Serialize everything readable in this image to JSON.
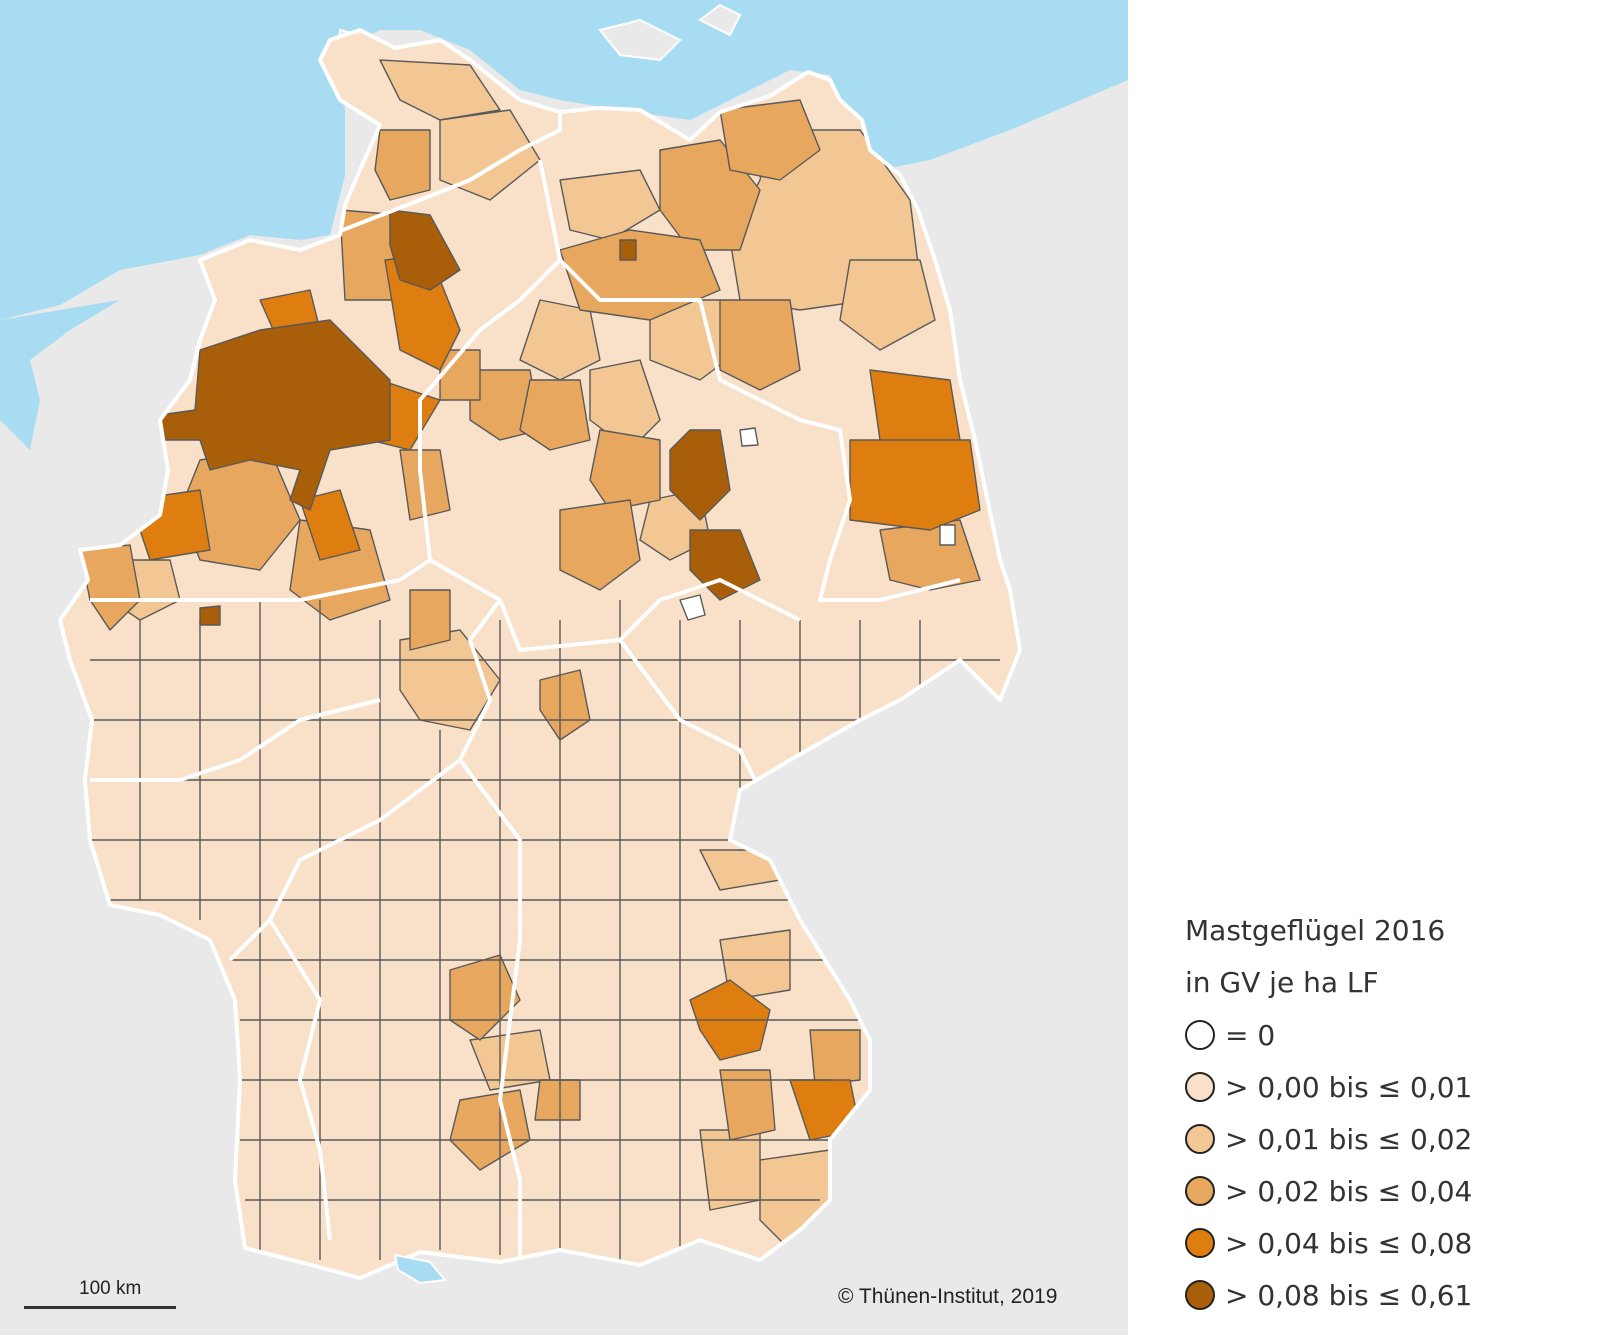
{
  "map": {
    "colors": {
      "sea": "#a7dcf2",
      "land_outside": "#e9e9e9",
      "state_border": "#ffffff",
      "district_border": "#595959"
    },
    "scalebar_label": "100 km",
    "copyright": "© Thünen-Institut, 2019"
  },
  "legend": {
    "title_line1": "Mastgeflügel 2016",
    "title_line2": "in GV je ha LF",
    "classes": [
      {
        "label": "= 0",
        "color": "#ffffff"
      },
      {
        "label": "> 0,00 bis ≤ 0,01",
        "color": "#f8e1c8"
      },
      {
        "label": "> 0,01 bis ≤ 0,02",
        "color": "#f3c794"
      },
      {
        "label": "> 0,02 bis ≤ 0,04",
        "color": "#e8a75e"
      },
      {
        "label": "> 0,04 bis ≤ 0,08",
        "color": "#de7d10"
      },
      {
        "label": "> 0,08 bis ≤ 0,61",
        "color": "#a95e0a"
      }
    ]
  }
}
